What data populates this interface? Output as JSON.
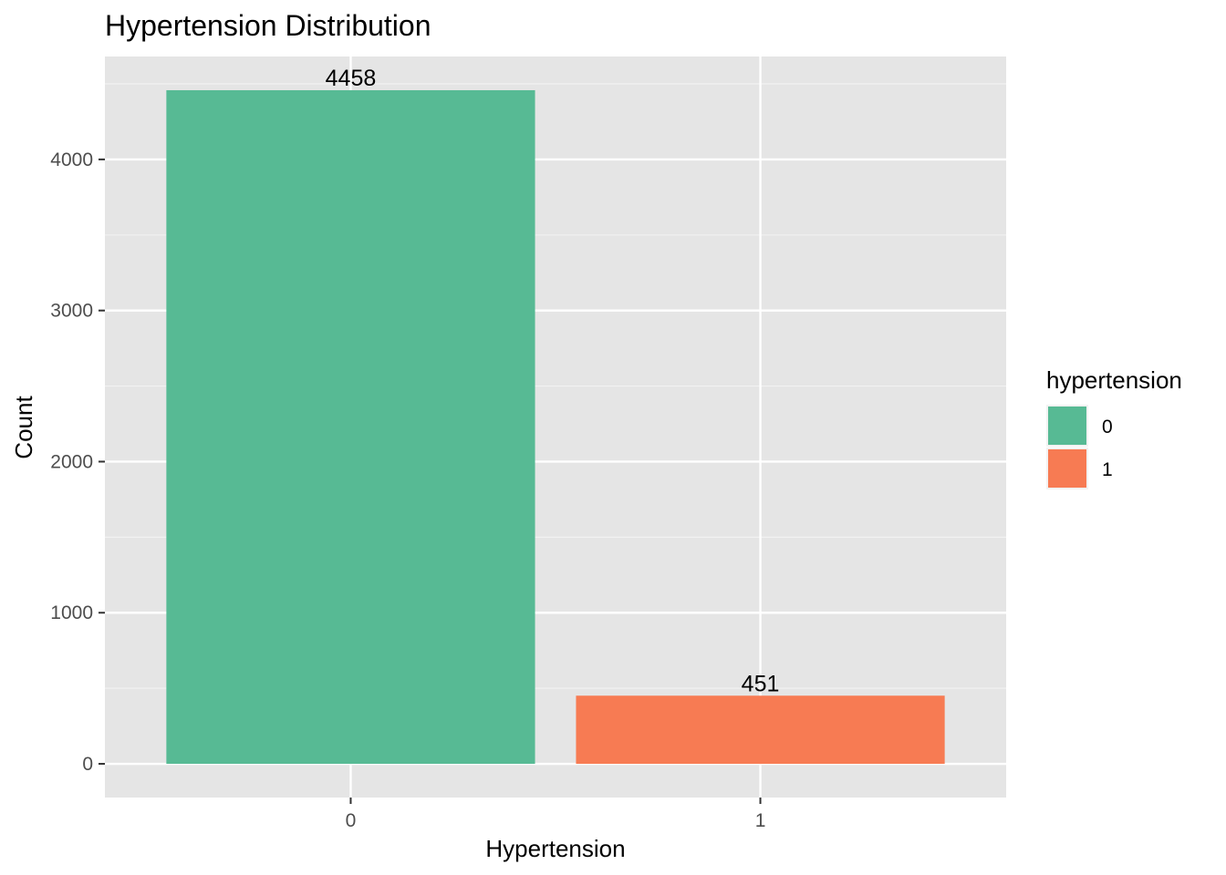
{
  "chart_data": {
    "type": "bar",
    "title": "Hypertension Distribution",
    "xlabel": "Hypertension",
    "ylabel": "Count",
    "categories": [
      "0",
      "1"
    ],
    "values": [
      4458,
      451
    ],
    "data_labels": [
      "4458",
      "451"
    ],
    "ylim": [
      -223,
      4681
    ],
    "yticks": [
      0,
      1000,
      2000,
      3000,
      4000
    ],
    "ytick_labels": [
      "0",
      "1000",
      "2000",
      "3000",
      "4000"
    ],
    "grid": true,
    "colors": [
      "#57BA94",
      "#F77B53"
    ],
    "panel_background": "#E5E5E5",
    "legend": {
      "title": "hypertension",
      "position": "right",
      "entries": [
        "0",
        "1"
      ]
    }
  }
}
